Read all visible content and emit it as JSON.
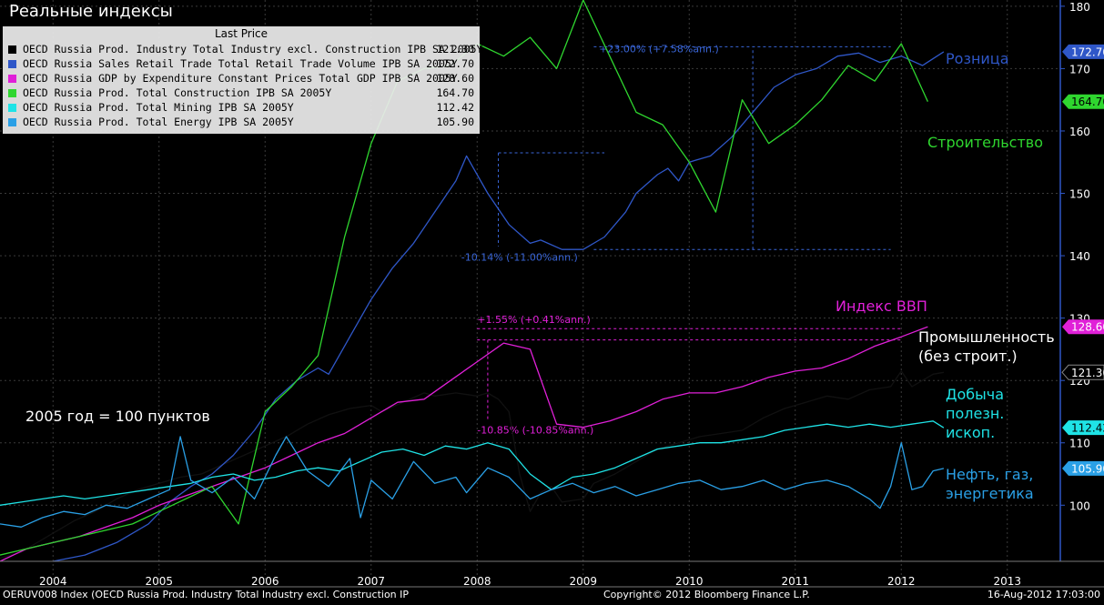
{
  "title": "Реальные индексы",
  "note": "2005 год = 100 пунктов",
  "legend": {
    "header": "Last Price",
    "items": [
      {
        "name": "OECD Russia Prod. Industry Total Industry excl. Construction IPB SA 2005Y",
        "value": "121.30",
        "color": "#000000"
      },
      {
        "name": "OECD Russia Sales Retail Trade Total Retail Trade Volume IPB SA 2005Y",
        "value": "172.70",
        "color": "#2f57c8"
      },
      {
        "name": "OECD Russia GDP by Expenditure Constant Prices Total GDP IPB SA 2005Y",
        "value": "128.60",
        "color": "#e020d8"
      },
      {
        "name": "OECD Russia Prod. Total Construction IPB SA 2005Y",
        "value": "164.70",
        "color": "#2fd62f"
      },
      {
        "name": "OECD Russia Prod. Total Mining IPB SA 2005Y",
        "value": "112.42",
        "color": "#1fe3e6"
      },
      {
        "name": "OECD Russia Prod. Total Energy IPB SA 2005Y",
        "value": "105.90",
        "color": "#2aa0e6"
      }
    ]
  },
  "annotations": {
    "retail": "Розница",
    "construction": "Строительство",
    "gdp": "Индекс ВВП",
    "industry_1": "Промышленность",
    "industry_2": "(без строит.)",
    "mining_1": "Добыча",
    "mining_2": "полезн.",
    "mining_3": "ископ.",
    "energy_1": "Нефть, газ,",
    "energy_2": "энергетика",
    "retail_up": "+23.00% (+7.58%ann.)",
    "retail_down": "-10.14% (-11.00%ann.)",
    "gdp_up": "+1.55% (+0.41%ann.)",
    "gdp_down": "-10.85% (-10.85%ann.)"
  },
  "footer": {
    "left": "OERUV008 Index (OECD Russia Prod. Industry Total Industry excl. Construction IP",
    "center": "Copyright© 2012 Bloomberg Finance L.P.",
    "right": "16-Aug-2012 17:03:00"
  },
  "chart_data": {
    "type": "line",
    "xlim": [
      2003.5,
      2013.5
    ],
    "ylim": [
      91,
      181
    ],
    "y_ticks": [
      100,
      110,
      120,
      130,
      140,
      150,
      160,
      170,
      180
    ],
    "x_tick_labels": [
      "2004",
      "2005",
      "2006",
      "2007",
      "2008",
      "2009",
      "2010",
      "2011",
      "2012",
      "2013"
    ],
    "grid": true,
    "series": [
      {
        "name": "OECD Russia Prod. Industry Total Industry excl. Construction IPB SA 2005Y",
        "color": "#000000",
        "last": "121.30",
        "x": [
          2003.5,
          2003.7,
          2003.9,
          2004.0,
          2004.2,
          2004.4,
          2004.6,
          2004.8,
          2005.0,
          2005.2,
          2005.4,
          2005.6,
          2005.8,
          2006.0,
          2006.2,
          2006.4,
          2006.6,
          2006.8,
          2007.0,
          2007.1,
          2007.3,
          2007.5,
          2007.6,
          2007.8,
          2008.0,
          2008.1,
          2008.2,
          2008.3,
          2008.4,
          2008.5,
          2008.6,
          2008.7,
          2008.8,
          2009.0,
          2009.1,
          2009.3,
          2009.5,
          2009.7,
          2009.9,
          2010.1,
          2010.3,
          2010.5,
          2010.7,
          2010.9,
          2011.1,
          2011.3,
          2011.5,
          2011.7,
          2011.9,
          2012.0,
          2012.1,
          2012.3,
          2012.4
        ],
        "y": [
          91.5,
          92.5,
          94.5,
          95.5,
          97.5,
          99.0,
          101.0,
          102.5,
          103.5,
          104.5,
          105.0,
          106.5,
          108.0,
          109.5,
          111.0,
          113.0,
          114.5,
          115.5,
          116.0,
          115.0,
          116.5,
          118.0,
          117.5,
          118.0,
          117.5,
          118.0,
          117.0,
          115.0,
          105.0,
          99.0,
          102.0,
          103.0,
          100.5,
          101.0,
          103.5,
          105.0,
          107.0,
          109.0,
          110.0,
          111.0,
          111.5,
          112.0,
          114.0,
          115.5,
          116.5,
          117.5,
          117.0,
          118.5,
          119.0,
          121.5,
          119.0,
          121.0,
          121.3
        ]
      },
      {
        "name": "OECD Russia Sales Retail Trade Total Retail Trade Volume IPB SA 2005Y",
        "color": "#2f57c8",
        "last": "172.70",
        "x": [
          2004.0,
          2004.3,
          2004.6,
          2004.9,
          2005.1,
          2005.3,
          2005.5,
          2005.7,
          2005.9,
          2006.1,
          2006.3,
          2006.5,
          2006.6,
          2006.8,
          2007.0,
          2007.2,
          2007.4,
          2007.6,
          2007.8,
          2007.9,
          2008.1,
          2008.3,
          2008.5,
          2008.6,
          2008.8,
          2008.9,
          2009.0,
          2009.2,
          2009.4,
          2009.5,
          2009.7,
          2009.8,
          2009.9,
          2010.0,
          2010.2,
          2010.4,
          2010.6,
          2010.8,
          2011.0,
          2011.2,
          2011.4,
          2011.6,
          2011.8,
          2012.0,
          2012.2,
          2012.4
        ],
        "y": [
          91.0,
          92.0,
          94.0,
          97.0,
          100.5,
          103.0,
          105.0,
          108.0,
          112.0,
          117.0,
          120.0,
          122.0,
          121.0,
          127.0,
          133.0,
          138.0,
          142.0,
          147.0,
          152.0,
          156.0,
          150.0,
          145.0,
          142.0,
          142.5,
          141.0,
          141.0,
          141.0,
          143.0,
          147.0,
          150.0,
          153.0,
          154.0,
          152.0,
          155.0,
          156.0,
          159.0,
          163.0,
          167.0,
          169.0,
          170.0,
          172.0,
          172.5,
          171.0,
          172.0,
          170.5,
          172.7
        ]
      },
      {
        "name": "OECD Russia GDP by Expenditure Constant Prices Total GDP IPB SA 2005Y",
        "color": "#e020d8",
        "last": "128.60",
        "x": [
          2003.5,
          2003.75,
          2004.0,
          2004.25,
          2004.5,
          2004.75,
          2005.0,
          2005.25,
          2005.5,
          2005.75,
          2006.0,
          2006.25,
          2006.5,
          2006.75,
          2007.0,
          2007.25,
          2007.5,
          2007.75,
          2008.0,
          2008.25,
          2008.5,
          2008.75,
          2009.0,
          2009.25,
          2009.5,
          2009.75,
          2010.0,
          2010.25,
          2010.5,
          2010.75,
          2011.0,
          2011.25,
          2011.5,
          2011.75,
          2012.0,
          2012.25
        ],
        "y": [
          91.0,
          93.0,
          94.0,
          95.0,
          96.5,
          98.0,
          100.0,
          101.5,
          103.0,
          104.5,
          106.0,
          108.0,
          110.0,
          111.5,
          114.0,
          116.5,
          117.0,
          120.0,
          123.0,
          126.0,
          125.0,
          113.0,
          112.5,
          113.5,
          115.0,
          117.0,
          118.0,
          118.0,
          119.0,
          120.5,
          121.5,
          122.0,
          123.5,
          125.5,
          127.0,
          128.6
        ]
      },
      {
        "name": "OECD Russia Prod. Total Construction IPB SA 2005Y",
        "color": "#2fd62f",
        "last": "164.70",
        "x": [
          2003.5,
          2003.75,
          2004.0,
          2004.25,
          2004.5,
          2004.75,
          2005.0,
          2005.25,
          2005.5,
          2005.75,
          2006.0,
          2006.25,
          2006.5,
          2006.75,
          2007.0,
          2007.25,
          2007.5,
          2007.75,
          2008.0,
          2008.25,
          2008.5,
          2008.75,
          2009.0,
          2009.25,
          2009.5,
          2009.75,
          2010.0,
          2010.25,
          2010.5,
          2010.75,
          2011.0,
          2011.25,
          2011.5,
          2011.75,
          2012.0,
          2012.25
        ],
        "y": [
          92.0,
          93.0,
          94.0,
          95.0,
          96.0,
          97.0,
          99.0,
          101.0,
          103.0,
          97.0,
          115.0,
          119.0,
          124.0,
          143.0,
          158.0,
          168.0,
          170.0,
          170.5,
          174.0,
          172.0,
          175.0,
          170.0,
          181.0,
          172.0,
          163.0,
          161.0,
          155.0,
          147.0,
          165.0,
          158.0,
          161.0,
          165.0,
          170.5,
          168.0,
          174.0,
          164.7
        ]
      },
      {
        "name": "OECD Russia Prod. Total Mining IPB SA 2005Y",
        "color": "#1fe3e6",
        "last": "112.42",
        "x": [
          2003.5,
          2003.7,
          2003.9,
          2004.1,
          2004.3,
          2004.5,
          2004.7,
          2004.9,
          2005.1,
          2005.3,
          2005.5,
          2005.7,
          2005.9,
          2006.1,
          2006.3,
          2006.5,
          2006.7,
          2006.9,
          2007.1,
          2007.3,
          2007.5,
          2007.7,
          2007.9,
          2008.1,
          2008.3,
          2008.5,
          2008.7,
          2008.9,
          2009.1,
          2009.3,
          2009.5,
          2009.7,
          2009.9,
          2010.1,
          2010.3,
          2010.5,
          2010.7,
          2010.9,
          2011.1,
          2011.3,
          2011.5,
          2011.7,
          2011.9,
          2012.1,
          2012.3,
          2012.4
        ],
        "y": [
          100.0,
          100.5,
          101.0,
          101.5,
          101.0,
          101.5,
          102.0,
          102.5,
          103.0,
          103.5,
          104.5,
          105.0,
          104.0,
          104.5,
          105.5,
          106.0,
          105.5,
          107.0,
          108.5,
          109.0,
          108.0,
          109.5,
          109.0,
          110.0,
          109.0,
          105.0,
          102.5,
          104.5,
          105.0,
          106.0,
          107.5,
          109.0,
          109.5,
          110.0,
          110.0,
          110.5,
          111.0,
          112.0,
          112.5,
          113.0,
          112.5,
          113.0,
          112.5,
          113.0,
          113.5,
          112.42
        ]
      },
      {
        "name": "OECD Russia Prod. Total Energy IPB SA 2005Y",
        "color": "#2aa0e6",
        "last": "105.90",
        "x": [
          2003.5,
          2003.7,
          2003.9,
          2004.1,
          2004.3,
          2004.5,
          2004.7,
          2004.9,
          2005.1,
          2005.2,
          2005.3,
          2005.5,
          2005.7,
          2005.9,
          2006.1,
          2006.2,
          2006.4,
          2006.6,
          2006.8,
          2006.9,
          2007.0,
          2007.2,
          2007.4,
          2007.6,
          2007.8,
          2007.9,
          2008.1,
          2008.3,
          2008.5,
          2008.7,
          2008.9,
          2009.1,
          2009.3,
          2009.5,
          2009.7,
          2009.9,
          2010.1,
          2010.3,
          2010.5,
          2010.7,
          2010.9,
          2011.1,
          2011.3,
          2011.5,
          2011.7,
          2011.8,
          2011.9,
          2012.0,
          2012.1,
          2012.2,
          2012.3,
          2012.4
        ],
        "y": [
          97.0,
          96.5,
          98.0,
          99.0,
          98.5,
          100.0,
          99.5,
          101.0,
          102.5,
          111.0,
          104.0,
          102.0,
          104.5,
          101.0,
          108.0,
          111.0,
          105.5,
          103.0,
          107.5,
          98.0,
          104.0,
          101.0,
          107.0,
          103.5,
          104.5,
          102.0,
          106.0,
          104.5,
          101.0,
          102.5,
          103.5,
          102.0,
          103.0,
          101.5,
          102.5,
          103.5,
          104.0,
          102.5,
          103.0,
          104.0,
          102.5,
          103.5,
          104.0,
          103.0,
          101.0,
          99.5,
          103.0,
          110.0,
          102.5,
          103.0,
          105.5,
          105.9
        ]
      }
    ]
  }
}
